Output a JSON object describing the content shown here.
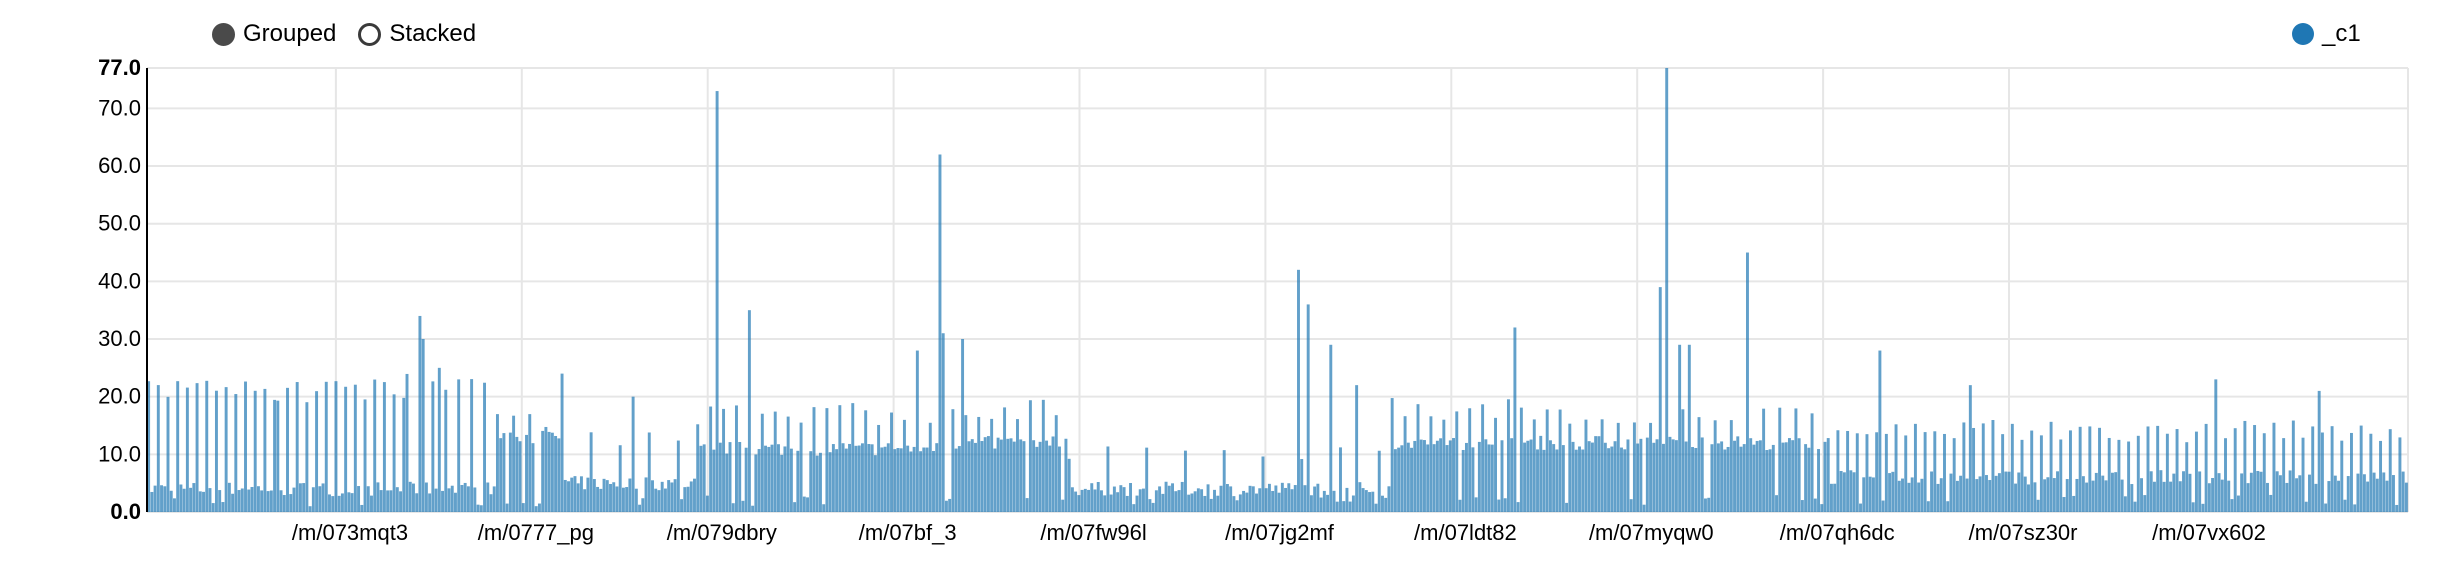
{
  "controls": {
    "grouped_label": "Grouped",
    "stacked_label": "Stacked",
    "selected": "grouped"
  },
  "legend": {
    "series_label": "_c1",
    "color": "#1f77b4"
  },
  "colors": {
    "bar": "#1f77b4",
    "grid": "#e6e6e6",
    "axis": "#000000"
  },
  "chart_data": {
    "type": "bar",
    "mode": "grouped",
    "series": [
      {
        "name": "_c1"
      }
    ],
    "ylim": [
      0,
      77
    ],
    "yticks": [
      "0.0",
      "10.0",
      "20.0",
      "30.0",
      "40.0",
      "50.0",
      "60.0",
      "70.0",
      "77.0"
    ],
    "x_tick_labels": [
      "/m/073mqt3",
      "/m/0777_pg",
      "/m/079dbry",
      "/m/07bf_3",
      "/m/07fw96l",
      "/m/07jg2mf",
      "/m/07ldt82",
      "/m/07myqw0",
      "/m/07qh6dc",
      "/m/07sz30r",
      "/m/07vx602"
    ],
    "bar_count": 700,
    "bar_opacity": 0.7,
    "segments": [
      {
        "from": 0,
        "to": 40,
        "base": 4,
        "spike_every": 3,
        "spike": 21
      },
      {
        "from": 40,
        "to": 80,
        "base": 4,
        "spike_every": 3,
        "spike": 21
      },
      {
        "from": 80,
        "to": 108,
        "base": 4,
        "spike_every": 4,
        "spike": 22
      },
      {
        "from": 108,
        "to": 128,
        "base": 13,
        "spike_every": 5,
        "spike": 15
      },
      {
        "from": 128,
        "to": 170,
        "base": 5,
        "spike_every": 9,
        "spike": 12
      },
      {
        "from": 170,
        "to": 245,
        "base": 11,
        "spike_every": 4,
        "spike": 17
      },
      {
        "from": 245,
        "to": 285,
        "base": 12,
        "spike_every": 4,
        "spike": 18
      },
      {
        "from": 285,
        "to": 385,
        "base": 4,
        "spike_every": 12,
        "spike": 10
      },
      {
        "from": 385,
        "to": 440,
        "base": 12,
        "spike_every": 4,
        "spike": 18
      },
      {
        "from": 440,
        "to": 520,
        "base": 12,
        "spike_every": 5,
        "spike": 17
      },
      {
        "from": 520,
        "to": 700,
        "base": 6,
        "spike_every": 3,
        "spike": 14
      }
    ],
    "peaks": [
      {
        "index": 84,
        "value": 34
      },
      {
        "index": 85,
        "value": 30
      },
      {
        "index": 90,
        "value": 25
      },
      {
        "index": 96,
        "value": 23
      },
      {
        "index": 128,
        "value": 24
      },
      {
        "index": 150,
        "value": 20
      },
      {
        "index": 176,
        "value": 73
      },
      {
        "index": 186,
        "value": 35
      },
      {
        "index": 238,
        "value": 28
      },
      {
        "index": 245,
        "value": 62
      },
      {
        "index": 246,
        "value": 31
      },
      {
        "index": 252,
        "value": 30
      },
      {
        "index": 356,
        "value": 42
      },
      {
        "index": 359,
        "value": 36
      },
      {
        "index": 366,
        "value": 29
      },
      {
        "index": 374,
        "value": 22
      },
      {
        "index": 423,
        "value": 32
      },
      {
        "index": 468,
        "value": 39
      },
      {
        "index": 470,
        "value": 77
      },
      {
        "index": 474,
        "value": 29
      },
      {
        "index": 477,
        "value": 29
      },
      {
        "index": 495,
        "value": 45
      },
      {
        "index": 536,
        "value": 28
      },
      {
        "index": 564,
        "value": 22
      },
      {
        "index": 640,
        "value": 23
      },
      {
        "index": 672,
        "value": 21
      }
    ]
  }
}
